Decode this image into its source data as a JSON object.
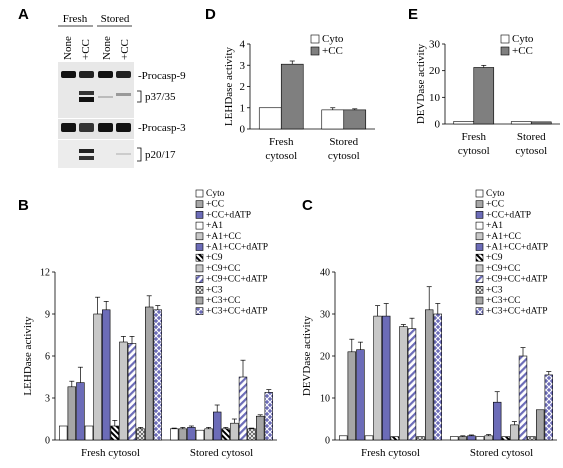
{
  "colors": {
    "white": "#ffffff",
    "light_gray": "#c8c8c8",
    "mid_gray": "#a6a6a6",
    "dark_gray": "#7f7f7f",
    "blue_violet": "#6c6cb8",
    "ink": "#000000"
  },
  "panel_A": {
    "letter": "A",
    "group_labels": [
      "Fresh",
      "Stored"
    ],
    "lane_labels": [
      "None",
      "+CC",
      "None",
      "+CC"
    ],
    "band_labels": [
      "-Procasp-9",
      "p37/35",
      "-Procasp-3",
      "p20/17"
    ]
  },
  "chart_data": [
    {
      "id": "D",
      "type": "bar",
      "title": "",
      "xlabel": "",
      "ylabel": "LEHDase activity",
      "ylim": [
        0,
        4
      ],
      "yticks": [
        0,
        1,
        2,
        3,
        4
      ],
      "grid": false,
      "legend_position": "top-right",
      "categories": [
        [
          "Fresh",
          "cytosol"
        ],
        [
          "Stored",
          "cytosol"
        ]
      ],
      "series": [
        {
          "name": "Cyto",
          "fill": "white",
          "values": [
            1.0,
            0.9
          ],
          "errors": [
            0,
            0.1
          ]
        },
        {
          "name": "+CC",
          "fill": "dark_gray",
          "values": [
            3.05,
            0.9
          ],
          "errors": [
            0.15,
            0.05
          ]
        }
      ]
    },
    {
      "id": "E",
      "type": "bar",
      "title": "",
      "xlabel": "",
      "ylabel": "DEVDase activity",
      "ylim": [
        0,
        30
      ],
      "yticks": [
        0,
        10,
        20,
        30
      ],
      "grid": false,
      "legend_position": "top-right",
      "categories": [
        [
          "Fresh",
          "cytosol"
        ],
        [
          "Stored",
          "cytosol"
        ]
      ],
      "series": [
        {
          "name": "Cyto",
          "fill": "white",
          "values": [
            1.0,
            0.9
          ],
          "errors": [
            0,
            0
          ]
        },
        {
          "name": "+CC",
          "fill": "dark_gray",
          "values": [
            21.2,
            0.8
          ],
          "errors": [
            0.8,
            0
          ]
        }
      ]
    },
    {
      "id": "B",
      "type": "bar",
      "title": "",
      "xlabel": "",
      "ylabel": "LEHDase activity",
      "ylim": [
        0,
        12
      ],
      "yticks": [
        0,
        3,
        6,
        9,
        12
      ],
      "grid": false,
      "legend_position": "top-right",
      "categories": [
        [
          "Fresh cytosol"
        ],
        [
          "Stored cytosol"
        ]
      ],
      "series": [
        {
          "name": "Cyto",
          "fill": "white",
          "values": [
            1.0,
            0.8
          ],
          "errors": [
            0,
            0.05
          ]
        },
        {
          "name": "+CC",
          "fill": "mid_gray",
          "values": [
            3.8,
            0.8
          ],
          "errors": [
            0.4,
            0.1
          ]
        },
        {
          "name": "+CC+dATP",
          "fill": "blue_violet",
          "values": [
            4.1,
            0.9
          ],
          "errors": [
            1.1,
            0.1
          ]
        },
        {
          "name": "+A1",
          "fill": "white",
          "values": [
            1.0,
            0.7
          ],
          "errors": [
            0,
            0
          ]
        },
        {
          "name": "+A1+CC",
          "fill": "light_gray",
          "values": [
            9.0,
            0.8
          ],
          "errors": [
            1.2,
            0.1
          ]
        },
        {
          "name": "+A1+CC+dATP",
          "fill": "blue_violet",
          "values": [
            9.3,
            2.0
          ],
          "errors": [
            0.6,
            0.5
          ]
        },
        {
          "name": "+C9",
          "fill": "black_diag",
          "values": [
            1.0,
            0.8
          ],
          "errors": [
            0.4,
            0.1
          ]
        },
        {
          "name": "+C9+CC",
          "fill": "light_gray",
          "values": [
            7.0,
            1.2
          ],
          "errors": [
            0.4,
            0.3
          ]
        },
        {
          "name": "+C9+CC+dATP",
          "fill": "diag",
          "values": [
            6.9,
            4.5
          ],
          "errors": [
            0.5,
            1.2
          ]
        },
        {
          "name": "+C3",
          "fill": "cross",
          "values": [
            0.8,
            0.8
          ],
          "errors": [
            0.1,
            0.05
          ]
        },
        {
          "name": "+C3+CC",
          "fill": "mid_gray",
          "values": [
            9.5,
            1.7
          ],
          "errors": [
            0.8,
            0.1
          ]
        },
        {
          "name": "+C3+CC+dATP",
          "fill": "lattice",
          "values": [
            9.3,
            3.4
          ],
          "errors": [
            0.3,
            0.2
          ]
        }
      ]
    },
    {
      "id": "C",
      "type": "bar",
      "title": "",
      "xlabel": "",
      "ylabel": "DEVDase activity",
      "ylim": [
        0,
        40
      ],
      "yticks": [
        0,
        10,
        20,
        30,
        40
      ],
      "grid": false,
      "legend_position": "top-right",
      "categories": [
        [
          "Fresh cytosol"
        ],
        [
          "Stored cytosol"
        ]
      ],
      "series": [
        {
          "name": "Cyto",
          "fill": "white",
          "values": [
            1.0,
            0.8
          ],
          "errors": [
            0,
            0
          ]
        },
        {
          "name": "+CC",
          "fill": "mid_gray",
          "values": [
            21.0,
            0.8
          ],
          "errors": [
            3.0,
            0.2
          ]
        },
        {
          "name": "+CC+dATP",
          "fill": "blue_violet",
          "values": [
            21.5,
            1.0
          ],
          "errors": [
            1.8,
            0.2
          ]
        },
        {
          "name": "+A1",
          "fill": "white",
          "values": [
            1.0,
            0.8
          ],
          "errors": [
            0,
            0
          ]
        },
        {
          "name": "+A1+CC",
          "fill": "light_gray",
          "values": [
            29.5,
            1.0
          ],
          "errors": [
            2.5,
            0.3
          ]
        },
        {
          "name": "+A1+CC+dATP",
          "fill": "blue_violet",
          "values": [
            29.5,
            9.0
          ],
          "errors": [
            3.0,
            2.5
          ]
        },
        {
          "name": "+C9",
          "fill": "black_diag",
          "values": [
            0.8,
            0.8
          ],
          "errors": [
            0,
            0
          ]
        },
        {
          "name": "+C9+CC",
          "fill": "light_gray",
          "values": [
            27.0,
            3.6
          ],
          "errors": [
            0.5,
            0.8
          ]
        },
        {
          "name": "+C9+CC+dATP",
          "fill": "diag",
          "values": [
            26.5,
            20.0
          ],
          "errors": [
            2.5,
            2.0
          ]
        },
        {
          "name": "+C3",
          "fill": "cross",
          "values": [
            0.8,
            0.8
          ],
          "errors": [
            0,
            0
          ]
        },
        {
          "name": "+C3+CC",
          "fill": "mid_gray",
          "values": [
            31.0,
            7.2
          ],
          "errors": [
            5.5,
            0
          ]
        },
        {
          "name": "+C3+CC+dATP",
          "fill": "lattice",
          "values": [
            30.0,
            15.5
          ],
          "errors": [
            2.5,
            0.8
          ]
        }
      ]
    }
  ]
}
